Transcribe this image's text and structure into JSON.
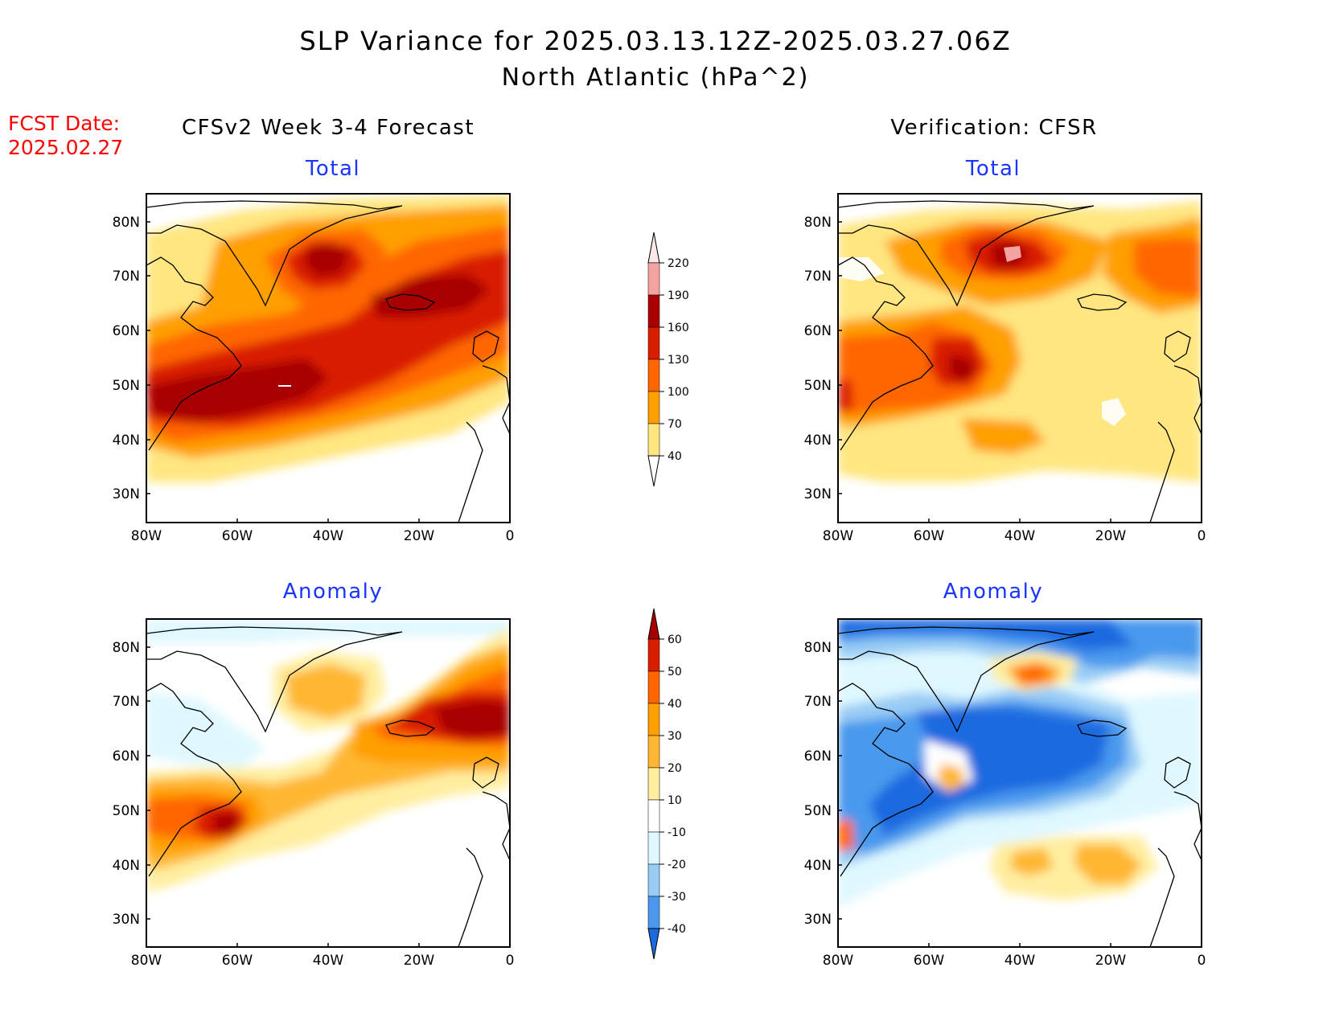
{
  "title": {
    "line1": "SLP Variance for 2025.03.13.12Z-2025.03.27.06Z",
    "line2": "North Atlantic (hPa^2)"
  },
  "fcst_date": {
    "label": "FCST Date:",
    "value": "2025.02.27"
  },
  "columns": {
    "left": "CFSv2 Week 3-4 Forecast",
    "right": "Verification: CFSR"
  },
  "panel_titles": {
    "total": "Total",
    "anomaly": "Anomaly"
  },
  "axes": {
    "lat_ticks": [
      "80N",
      "70N",
      "60N",
      "50N",
      "40N",
      "30N"
    ],
    "lon_ticks": [
      "80W",
      "60W",
      "40W",
      "20W",
      "0"
    ]
  },
  "colorbars": {
    "total": {
      "levels": [
        "220",
        "190",
        "160",
        "130",
        "100",
        "70",
        "40"
      ],
      "colors": [
        "#fce8e8",
        "#f4a3a3",
        "#a80000",
        "#d91e00",
        "#ff6600",
        "#ff9f00",
        "#ffe680",
        "#ffffff"
      ]
    },
    "anomaly": {
      "levels": [
        "60",
        "50",
        "40",
        "30",
        "20",
        "10",
        "-10",
        "-20",
        "-30",
        "-40"
      ],
      "colors": [
        "#a80000",
        "#d91e00",
        "#ff6600",
        "#ff9f00",
        "#ffb733",
        "#ffeea0",
        "#ffffff",
        "#dff8ff",
        "#99ccf5",
        "#4a99ee",
        "#1b6ae0"
      ]
    }
  },
  "colors": {
    "title_text": "#000000",
    "fcst_text": "#ff0000",
    "panel_title_text": "#1a35ff"
  },
  "coastline_icon": "coastline-outline"
}
